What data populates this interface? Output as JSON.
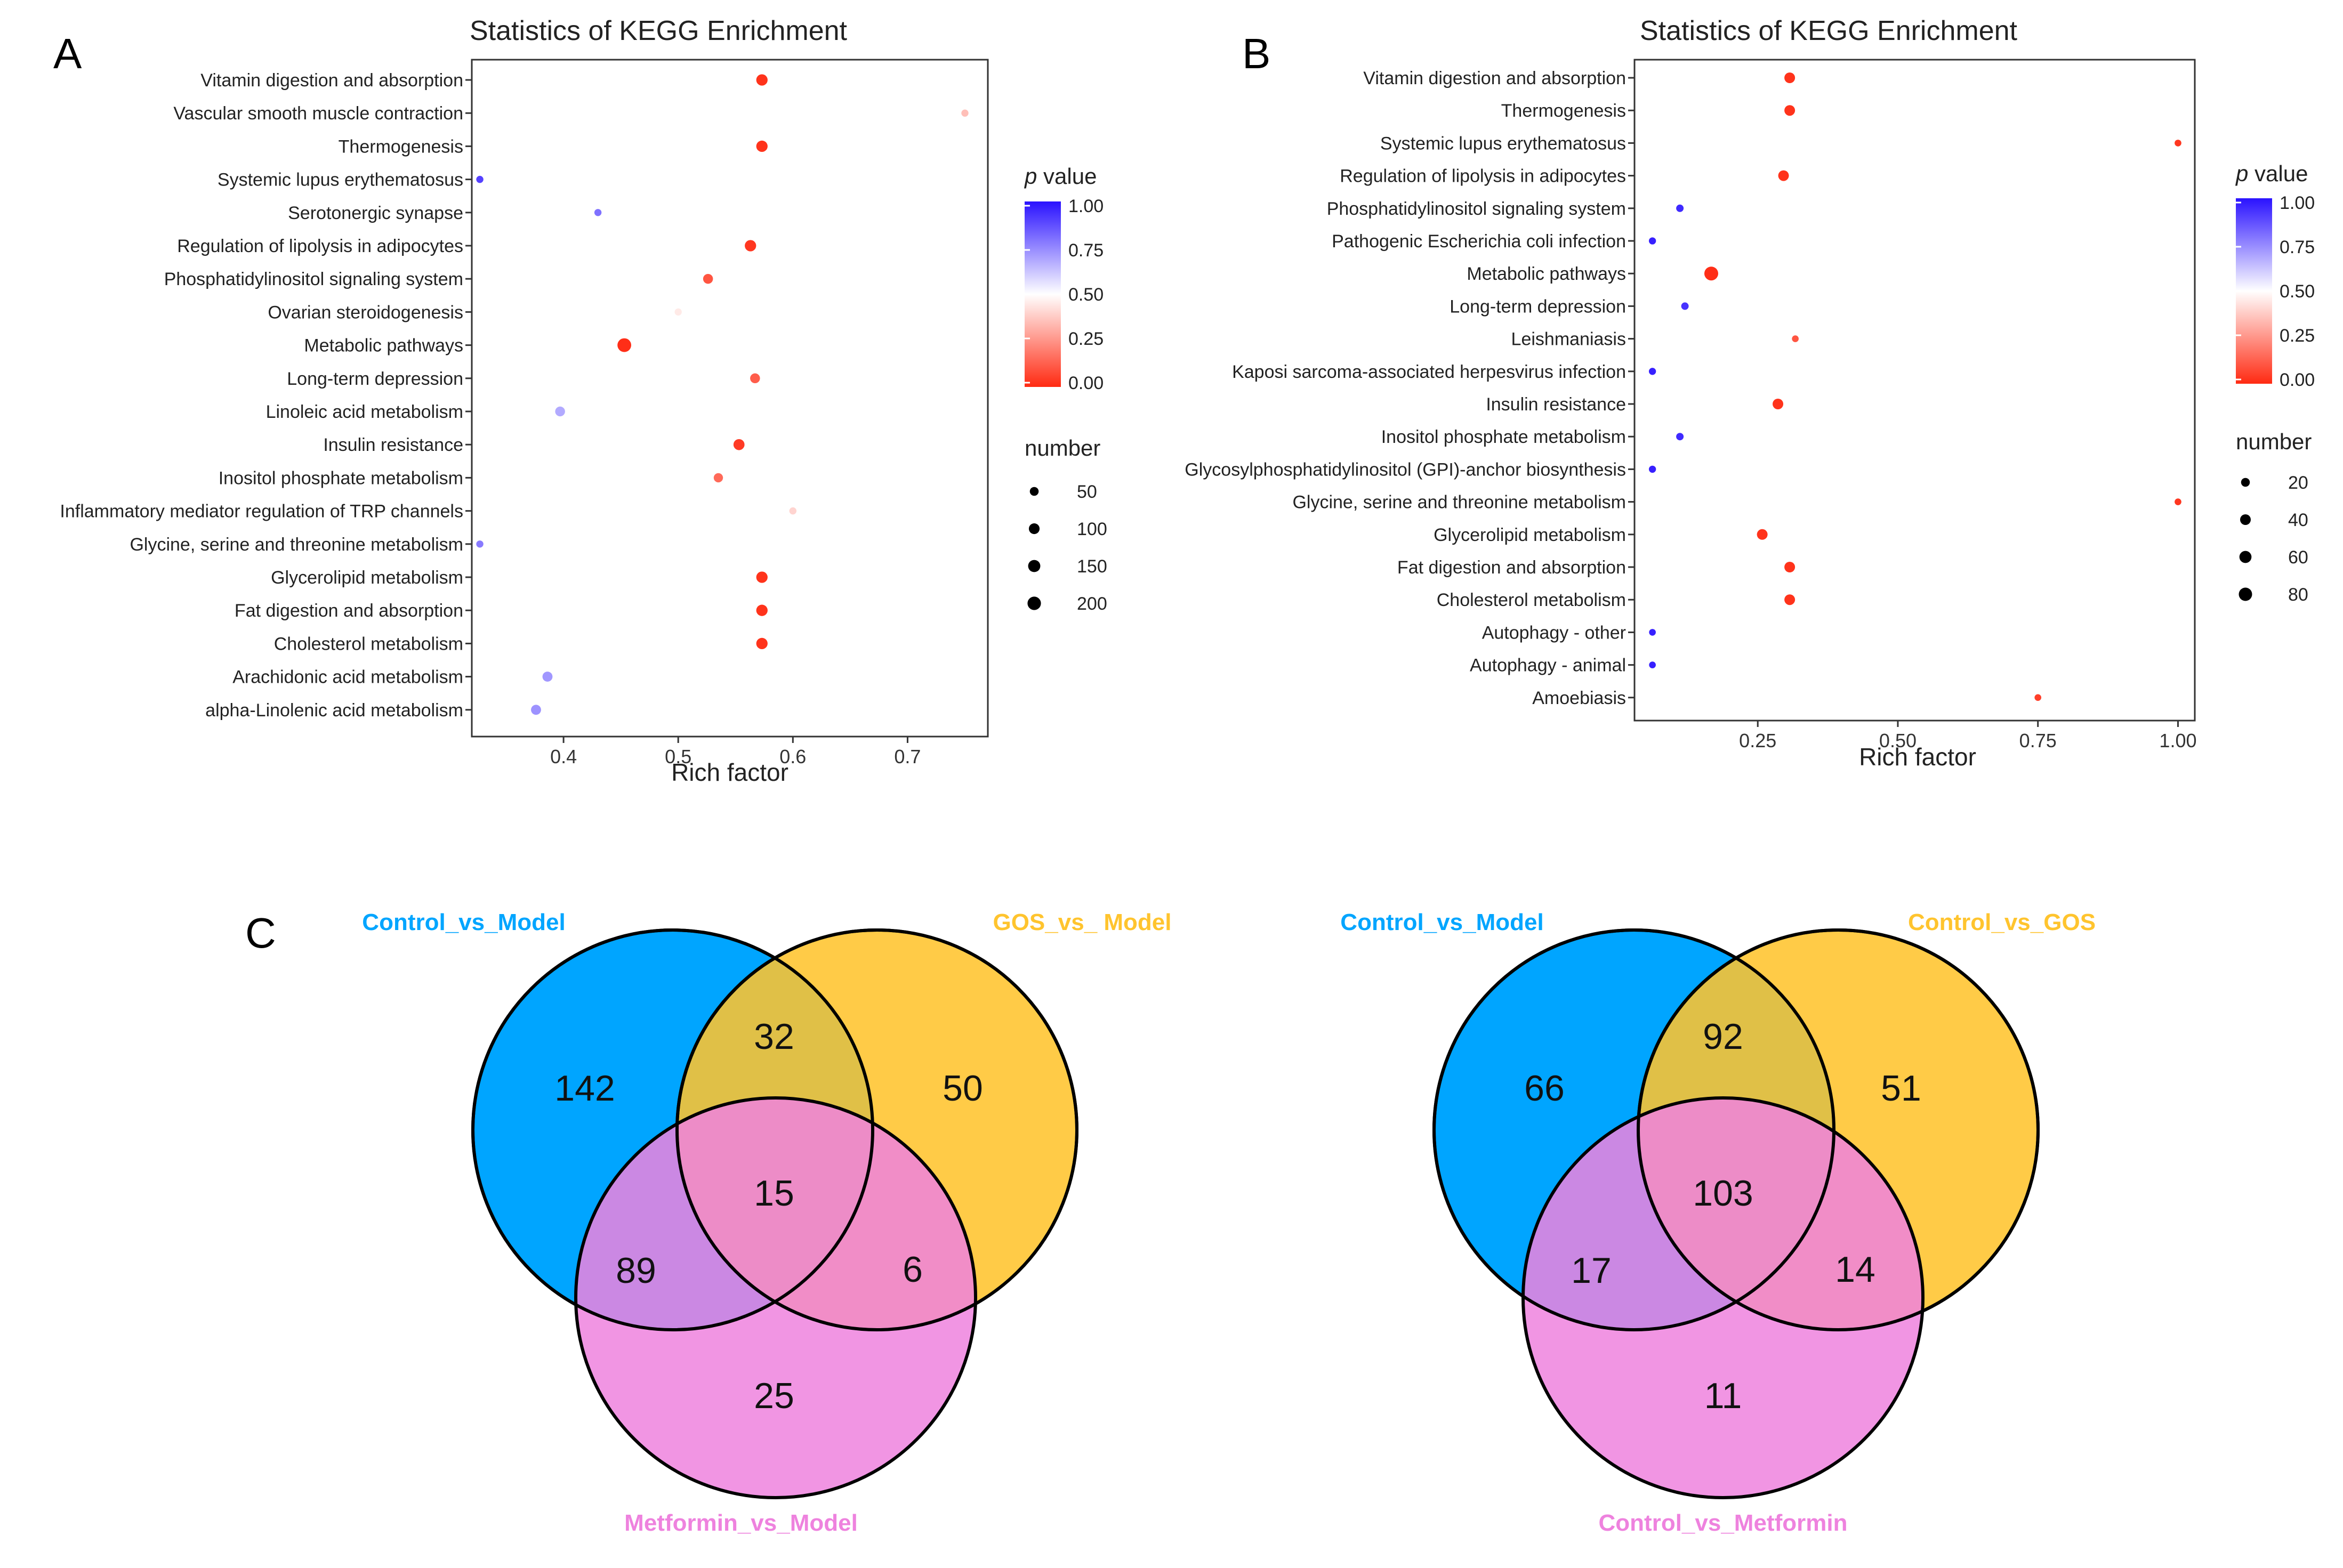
{
  "chart_data": [
    {
      "panel": "A",
      "type": "scatter",
      "title": "Statistics of KEGG Enrichment",
      "xlabel": "Rich factor",
      "ylabel": "",
      "xlim": [
        0.32,
        0.77
      ],
      "xticks": [
        0.4,
        0.5,
        0.6,
        0.7
      ],
      "xtick_labels": [
        "0.4",
        "0.5",
        "0.6",
        "0.7"
      ],
      "color_legend_title_italic": "p",
      "color_legend_title_rest": " value",
      "color_ticks": [
        "1.00",
        "0.75",
        "0.50",
        "0.25",
        "0.00"
      ],
      "size_legend_title": "number",
      "size_ticks": [
        50,
        100,
        150,
        200
      ],
      "size_tick_labels": [
        "50",
        "100",
        "150",
        "200"
      ],
      "size_max": 220,
      "points": [
        {
          "term": "Vitamin digestion and absorption",
          "rich_factor": 0.573,
          "p_value": 0.02,
          "number": 120
        },
        {
          "term": "Vascular smooth muscle contraction",
          "rich_factor": 0.75,
          "p_value": 0.35,
          "number": 20
        },
        {
          "term": "Thermogenesis",
          "rich_factor": 0.573,
          "p_value": 0.02,
          "number": 120
        },
        {
          "term": "Systemic lupus erythematosus",
          "rich_factor": 0.327,
          "p_value": 0.9,
          "number": 20
        },
        {
          "term": "Serotonergic synapse",
          "rich_factor": 0.43,
          "p_value": 0.8,
          "number": 20
        },
        {
          "term": "Regulation of lipolysis in adipocytes",
          "rich_factor": 0.563,
          "p_value": 0.03,
          "number": 120
        },
        {
          "term": "Phosphatidylinositol signaling system",
          "rich_factor": 0.526,
          "p_value": 0.1,
          "number": 75
        },
        {
          "term": "Ovarian steroidogenesis",
          "rich_factor": 0.5,
          "p_value": 0.45,
          "number": 20
        },
        {
          "term": "Metabolic pathways",
          "rich_factor": 0.453,
          "p_value": 0.01,
          "number": 215
        },
        {
          "term": "Long-term depression",
          "rich_factor": 0.567,
          "p_value": 0.12,
          "number": 75
        },
        {
          "term": "Linoleic acid metabolism",
          "rich_factor": 0.397,
          "p_value": 0.68,
          "number": 75
        },
        {
          "term": "Insulin resistance",
          "rich_factor": 0.553,
          "p_value": 0.04,
          "number": 110
        },
        {
          "term": "Inositol phosphate metabolism",
          "rich_factor": 0.535,
          "p_value": 0.15,
          "number": 60
        },
        {
          "term": "Inflammatory mediator regulation of TRP channels",
          "rich_factor": 0.6,
          "p_value": 0.4,
          "number": 20
        },
        {
          "term": "Glycine, serine and threonine metabolism",
          "rich_factor": 0.327,
          "p_value": 0.78,
          "number": 20
        },
        {
          "term": "Glycerolipid metabolism",
          "rich_factor": 0.573,
          "p_value": 0.02,
          "number": 120
        },
        {
          "term": "Fat digestion and absorption",
          "rich_factor": 0.573,
          "p_value": 0.02,
          "number": 120
        },
        {
          "term": "Cholesterol metabolism",
          "rich_factor": 0.573,
          "p_value": 0.02,
          "number": 120
        },
        {
          "term": "Arachidonic acid metabolism",
          "rich_factor": 0.386,
          "p_value": 0.72,
          "number": 80
        },
        {
          "term": "alpha-Linolenic acid metabolism",
          "rich_factor": 0.376,
          "p_value": 0.73,
          "number": 80
        }
      ]
    },
    {
      "panel": "B",
      "type": "scatter",
      "title": "Statistics of KEGG Enrichment",
      "xlabel": "Rich factor",
      "ylabel": "",
      "xlim": [
        0.03,
        1.03
      ],
      "xticks": [
        0.25,
        0.5,
        0.75,
        1.0
      ],
      "xtick_labels": [
        "0.25",
        "0.50",
        "0.75",
        "1.00"
      ],
      "color_legend_title_italic": "p",
      "color_legend_title_rest": " value",
      "color_ticks": [
        "1.00",
        "0.75",
        "0.50",
        "0.25",
        "0.00"
      ],
      "size_legend_title": "number",
      "size_ticks": [
        20,
        40,
        60,
        80
      ],
      "size_tick_labels": [
        "20",
        "40",
        "60",
        "80"
      ],
      "size_max": 90,
      "points": [
        {
          "term": "Vitamin digestion and absorption",
          "rich_factor": 0.307,
          "p_value": 0.02,
          "number": 40
        },
        {
          "term": "Thermogenesis",
          "rich_factor": 0.307,
          "p_value": 0.02,
          "number": 40
        },
        {
          "term": "Systemic lupus erythematosus",
          "rich_factor": 1.0,
          "p_value": 0.03,
          "number": 6
        },
        {
          "term": "Regulation of lipolysis in adipocytes",
          "rich_factor": 0.296,
          "p_value": 0.02,
          "number": 40
        },
        {
          "term": "Phosphatidylinositol signaling system",
          "rich_factor": 0.111,
          "p_value": 0.95,
          "number": 10
        },
        {
          "term": "Pathogenic Escherichia coli infection",
          "rich_factor": 0.062,
          "p_value": 0.97,
          "number": 8
        },
        {
          "term": "Metabolic pathways",
          "rich_factor": 0.167,
          "p_value": 0.01,
          "number": 90
        },
        {
          "term": "Long-term depression",
          "rich_factor": 0.12,
          "p_value": 0.93,
          "number": 10
        },
        {
          "term": "Leishmaniasis",
          "rich_factor": 0.317,
          "p_value": 0.1,
          "number": 6
        },
        {
          "term": "Kaposi sarcoma-associated herpesvirus infection",
          "rich_factor": 0.062,
          "p_value": 0.97,
          "number": 8
        },
        {
          "term": "Insulin resistance",
          "rich_factor": 0.286,
          "p_value": 0.02,
          "number": 40
        },
        {
          "term": "Inositol phosphate metabolism",
          "rich_factor": 0.111,
          "p_value": 0.95,
          "number": 10
        },
        {
          "term": "Glycosylphosphatidylinositol (GPI)-anchor biosynthesis",
          "rich_factor": 0.062,
          "p_value": 0.97,
          "number": 8
        },
        {
          "term": "Glycine, serine and threonine metabolism",
          "rich_factor": 1.0,
          "p_value": 0.03,
          "number": 6
        },
        {
          "term": "Glycerolipid metabolism",
          "rich_factor": 0.258,
          "p_value": 0.02,
          "number": 40
        },
        {
          "term": "Fat digestion and absorption",
          "rich_factor": 0.307,
          "p_value": 0.02,
          "number": 40
        },
        {
          "term": "Cholesterol metabolism",
          "rich_factor": 0.307,
          "p_value": 0.02,
          "number": 40
        },
        {
          "term": "Autophagy - other",
          "rich_factor": 0.062,
          "p_value": 0.97,
          "number": 6
        },
        {
          "term": "Autophagy - animal",
          "rich_factor": 0.062,
          "p_value": 0.97,
          "number": 6
        },
        {
          "term": "Amoebiasis",
          "rich_factor": 0.75,
          "p_value": 0.05,
          "number": 6
        }
      ]
    },
    {
      "panel": "C-left",
      "type": "venn",
      "sets": [
        {
          "name": "Control_vs_Model",
          "color": "#00A5FF"
        },
        {
          "name": "GOS_vs_ Model",
          "color": "#FFC42E"
        },
        {
          "name": "Metformin_vs_Model",
          "color": "#EE82DE"
        }
      ],
      "regions": {
        "a_only": "142",
        "b_only": "50",
        "c_only": "25",
        "ab": "32",
        "ac": "89",
        "bc": "6",
        "abc": "15"
      }
    },
    {
      "panel": "C-right",
      "type": "venn",
      "sets": [
        {
          "name": "Control_vs_Model",
          "color": "#00A5FF"
        },
        {
          "name": "Control_vs_GOS",
          "color": "#FFC42E"
        },
        {
          "name": "Control_vs_Metformin",
          "color": "#EE82DE"
        }
      ],
      "regions": {
        "a_only": "66",
        "b_only": "51",
        "c_only": "11",
        "ab": "92",
        "ac": "17",
        "bc": "14",
        "abc": "103"
      }
    }
  ],
  "panel_letters": {
    "a": "A",
    "b": "B",
    "c": "C"
  },
  "colors": {
    "venn_blue": "#00A5FF",
    "venn_yellow": "#FFC42E",
    "venn_pink": "#EE82DE",
    "low_p": "#FF2A12",
    "mid_p": "#FFFFFF",
    "high_p": "#2A12FF"
  }
}
